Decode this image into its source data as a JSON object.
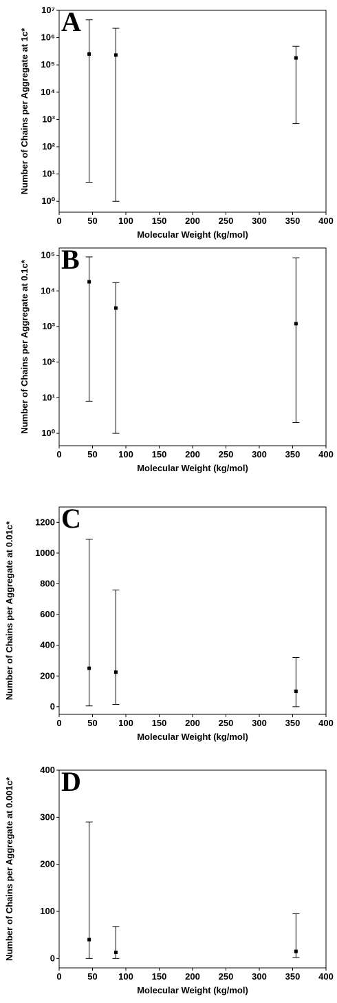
{
  "chart_data": [
    {
      "type": "scatter",
      "title": "A",
      "xlabel": "Molecular Weight (kg/mol)",
      "ylabel": "Number of Chains per Aggregate at 1c*",
      "yscale": "log",
      "xlim": [
        0,
        400
      ],
      "xticks": [
        0,
        50,
        100,
        150,
        200,
        250,
        300,
        350,
        400
      ],
      "ylim": [
        0.4,
        10000000
      ],
      "yticks": [
        {
          "value": 1,
          "label": "10⁰"
        },
        {
          "value": 10,
          "label": "10¹"
        },
        {
          "value": 100,
          "label": "10²"
        },
        {
          "value": 1000,
          "label": "10³"
        },
        {
          "value": 10000,
          "label": "10⁴"
        },
        {
          "value": 100000,
          "label": "10⁵"
        },
        {
          "value": 1000000,
          "label": "10⁶"
        },
        {
          "value": 10000000,
          "label": "10⁷"
        }
      ],
      "color": "#000000",
      "x": [
        45,
        85,
        355
      ],
      "values": [
        250000,
        230000,
        180000
      ],
      "lower": [
        5,
        1,
        700
      ],
      "upper": [
        4500000,
        2200000,
        480000
      ]
    },
    {
      "type": "scatter",
      "title": "B",
      "xlabel": "Molecular Weight (kg/mol)",
      "ylabel": "Number of Chains per Aggregate at 0.1c*",
      "yscale": "log",
      "xlim": [
        0,
        400
      ],
      "xticks": [
        0,
        50,
        100,
        150,
        200,
        250,
        300,
        350,
        400
      ],
      "ylim": [
        0.45,
        160000
      ],
      "yticks": [
        {
          "value": 1,
          "label": "10⁰"
        },
        {
          "value": 10,
          "label": "10¹"
        },
        {
          "value": 100,
          "label": "10²"
        },
        {
          "value": 1000,
          "label": "10³"
        },
        {
          "value": 10000,
          "label": "10⁴"
        },
        {
          "value": 100000,
          "label": "10⁵"
        }
      ],
      "color": "#000000",
      "x": [
        45,
        85,
        355
      ],
      "values": [
        18000,
        3300,
        1200
      ],
      "lower": [
        8,
        1,
        2
      ],
      "upper": [
        90000,
        17000,
        85000
      ]
    },
    {
      "type": "scatter",
      "title": "C",
      "xlabel": "Molecular Weight (kg/mol)",
      "ylabel": "Number of Chains per Aggregate at 0.01c*",
      "yscale": "linear",
      "xlim": [
        0,
        400
      ],
      "xticks": [
        0,
        50,
        100,
        150,
        200,
        250,
        300,
        350,
        400
      ],
      "ylim": [
        -50,
        1300
      ],
      "yticks": [
        0,
        200,
        400,
        600,
        800,
        1000,
        1200
      ],
      "color": "#000000",
      "x": [
        45,
        85,
        355
      ],
      "values": [
        250,
        225,
        100
      ],
      "lower": [
        5,
        15,
        0
      ],
      "upper": [
        1090,
        760,
        320
      ]
    },
    {
      "type": "scatter",
      "title": "D",
      "xlabel": "Molecular Weight (kg/mol)",
      "ylabel": "Number of Chains per Aggregate at 0.001c*",
      "yscale": "linear",
      "xlim": [
        0,
        400
      ],
      "xticks": [
        0,
        50,
        100,
        150,
        200,
        250,
        300,
        350,
        400
      ],
      "ylim": [
        -20,
        400
      ],
      "yticks": [
        0,
        100,
        200,
        300,
        400
      ],
      "color": "#000000",
      "x": [
        45,
        85,
        355
      ],
      "values": [
        40,
        13,
        15
      ],
      "lower": [
        0,
        0,
        2
      ],
      "upper": [
        290,
        68,
        95
      ]
    }
  ]
}
